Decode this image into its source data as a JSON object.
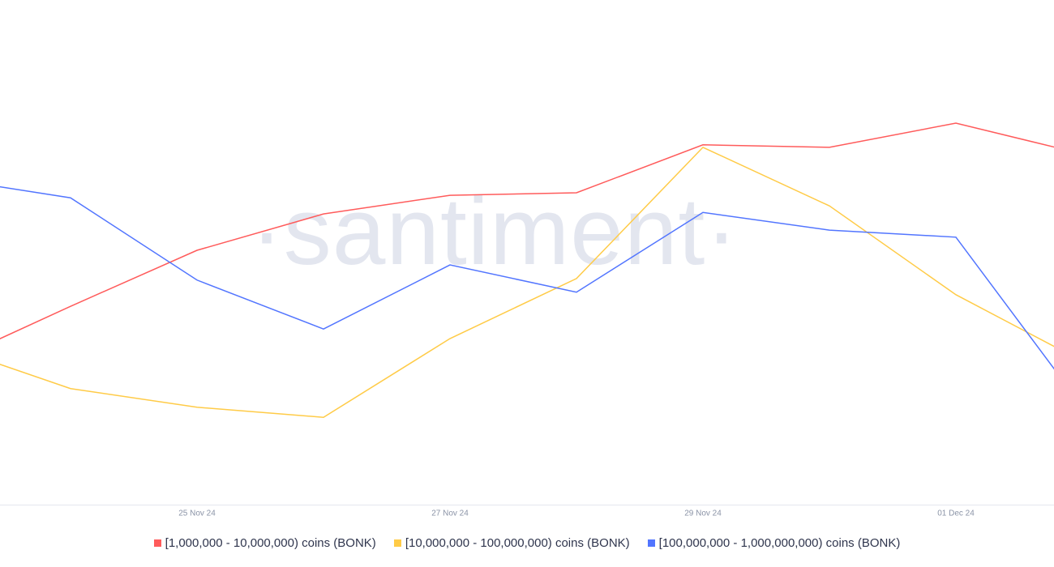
{
  "chart_data": {
    "type": "line",
    "watermark": "·santiment·",
    "categories": [
      null,
      null,
      "25 Nov 24",
      null,
      "27 Nov 24",
      null,
      "29 Nov 24",
      null,
      "01 Dec 24",
      null
    ],
    "series": [
      {
        "name": "[1,000,000 - 10,000,000) coins (BONK)",
        "color": "#ff5b5b",
        "values": [
          27.8,
          39.3,
          50.4,
          57.6,
          61.3,
          61.8,
          71.3,
          70.8,
          75.6,
          69.5
        ]
      },
      {
        "name": "[10,000,000 - 100,000,000) coins (BONK)",
        "color": "#ffcb47",
        "values": [
          31.6,
          23.0,
          19.3,
          17.3,
          32.9,
          44.8,
          70.8,
          59.2,
          41.6,
          28.4
        ]
      },
      {
        "name": "[100,000,000 - 1,000,000,000) coins (BONK)",
        "color": "#5275ff",
        "values": [
          64.7,
          60.8,
          44.5,
          34.8,
          47.5,
          42.1,
          57.9,
          54.4,
          53.0,
          19.4
        ]
      }
    ],
    "ylim": [
      0,
      100
    ]
  }
}
